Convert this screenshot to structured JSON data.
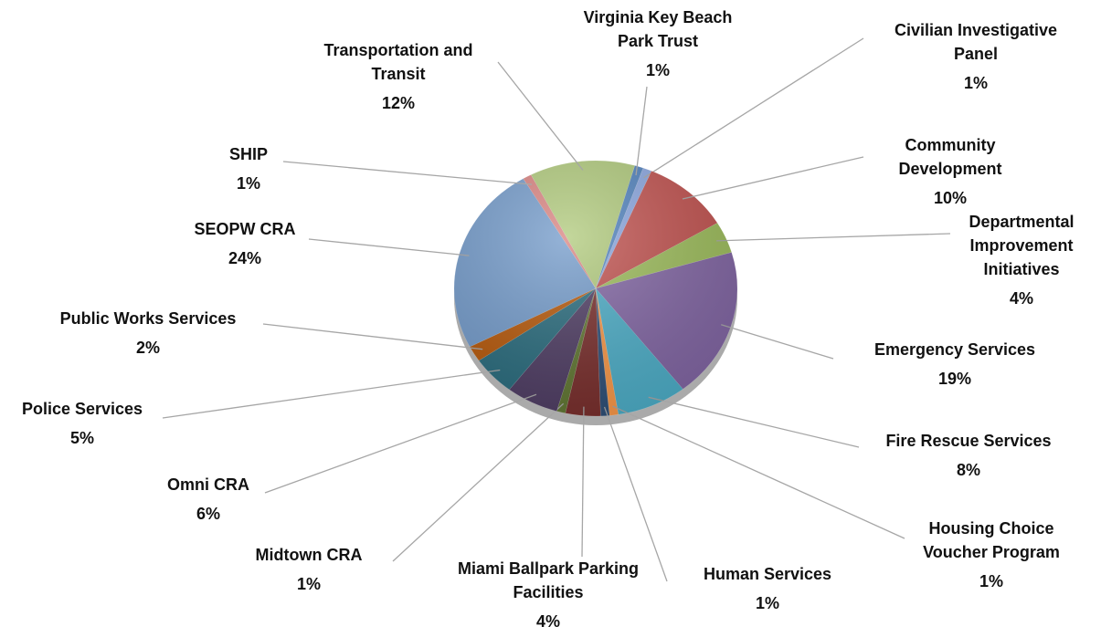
{
  "chart_data": {
    "type": "pie",
    "categories": [
      "Virginia Key Beach Park Trust",
      "Civilian Investigative Panel",
      "Community Development",
      "Departmental Improvement Initiatives",
      "Emergency Services",
      "Fire Rescue Services",
      "Housing Choice Voucher Program",
      "Human Services",
      "Miami Ballpark Parking Facilities",
      "Midtown CRA",
      "Omni CRA",
      "Police Services",
      "Public Works Services",
      "SEOPW CRA",
      "SHIP",
      "Transportation and Transit"
    ],
    "values": [
      1,
      1,
      10,
      4,
      19,
      8,
      1,
      1,
      4,
      1,
      6,
      5,
      2,
      24,
      1,
      12
    ],
    "value_labels": [
      "1%",
      "1%",
      "10%",
      "4%",
      "19%",
      "8%",
      "1%",
      "1%",
      "4%",
      "1%",
      "6%",
      "5%",
      "2%",
      "24%",
      "1%",
      "12%"
    ],
    "colors": [
      "#4f81bd",
      "#8aa6e0",
      "#c0504d",
      "#9bbb59",
      "#8064a2",
      "#4bacc6",
      "#f79646",
      "#2c4d75",
      "#772c2a",
      "#5f7530",
      "#4d3b62",
      "#276a7c",
      "#b65708",
      "#729aca",
      "#d9827f",
      "#afc97a"
    ]
  }
}
